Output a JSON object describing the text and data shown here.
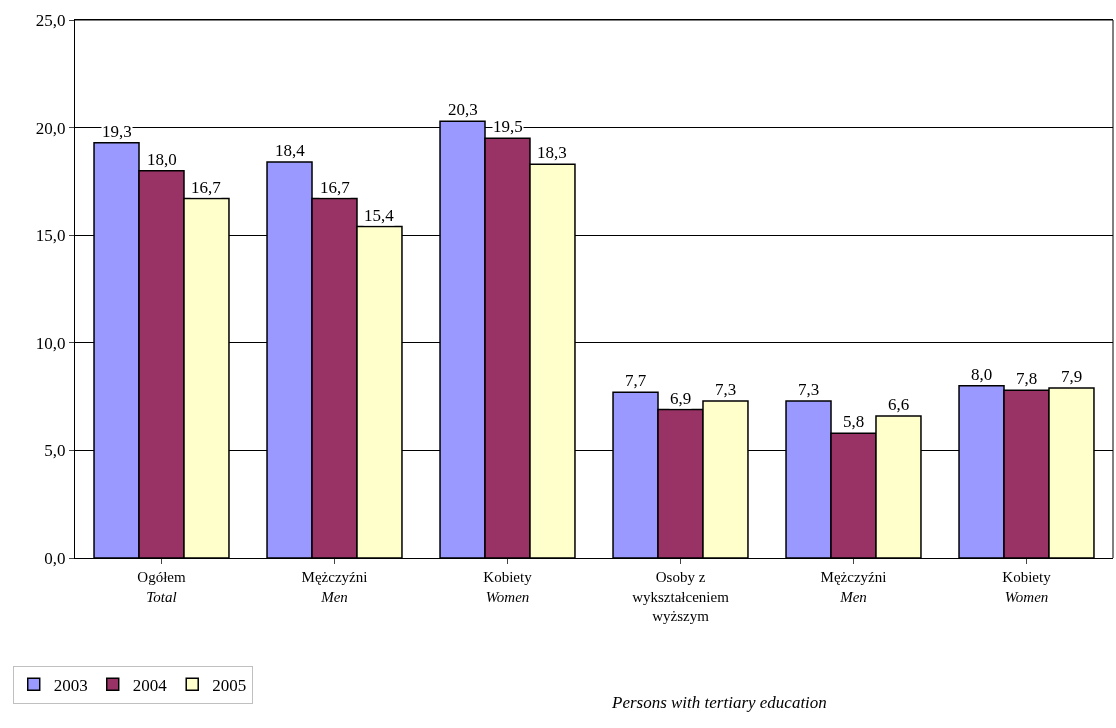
{
  "chart_data": {
    "type": "bar",
    "categories": [
      "Ogółem\nTotal",
      "Mężczyźni\nMen",
      "Kobiety\nWomen",
      "Osoby z\nwykształceniem\nwyższym",
      "Mężczyźni\nMen",
      "Kobiety\nWomen"
    ],
    "series": [
      {
        "name": "2003",
        "color": "#9999ff",
        "values": [
          19.3,
          18.4,
          20.3,
          7.7,
          7.3,
          8.0
        ],
        "value_labels": [
          "19,3",
          "18,4",
          "20,3",
          "7,7",
          "7,3",
          "8,0"
        ]
      },
      {
        "name": "2004",
        "color": "#993366",
        "values": [
          18.0,
          16.7,
          19.5,
          6.9,
          5.8,
          7.8
        ],
        "value_labels": [
          "18,0",
          "16,7",
          "19,5",
          "6,9",
          "5,8",
          "7,8"
        ]
      },
      {
        "name": "2005",
        "color": "#ffffcc",
        "values": [
          16.7,
          15.4,
          18.3,
          7.3,
          6.6,
          7.9
        ],
        "value_labels": [
          "16,7",
          "15,4",
          "18,3",
          "7,3",
          "6,6",
          "7,9"
        ]
      }
    ],
    "ylim": [
      0,
      25
    ],
    "yticks": [
      {
        "value": 0,
        "label": "0,0"
      },
      {
        "value": 5,
        "label": "5,0"
      },
      {
        "value": 10,
        "label": "10,0"
      },
      {
        "value": 15,
        "label": "15,0"
      },
      {
        "value": 20,
        "label": "20,0"
      },
      {
        "value": 25,
        "label": "25,0"
      }
    ],
    "grid": "y",
    "legend": "bottom left",
    "annotations": [
      "Persons with tertiary education"
    ]
  }
}
